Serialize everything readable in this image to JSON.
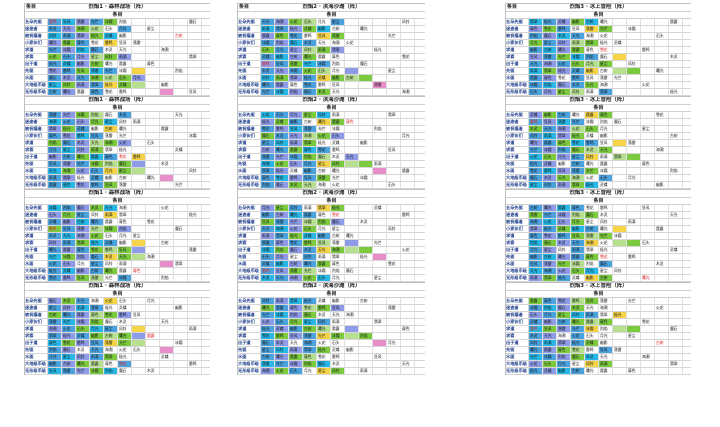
{
  "corner_label": "条目",
  "tiers": [
    "五朵先驱",
    "迷途者",
    "被祝福者",
    "小家伙们",
    "求道",
    "求索",
    "出于道",
    "先驱",
    "水面",
    "大地级币级",
    "无形级币级"
  ],
  "palette": {
    "bl": "#4aa3df",
    "cy": "#27b8e8",
    "pu": "#8e9be8",
    "gr": "#7ccb3f",
    "yl": "#f5d547",
    "lg": "#b6e08f",
    "pk": "#e88ec9"
  },
  "names": [
    "雷鸣",
    "狂风",
    "落雷",
    "光芒",
    "冰霜",
    "烈焰",
    "魔石",
    "木灵",
    "天光",
    "海潮",
    "火花",
    "石头",
    "月光",
    "星尘",
    "风铃",
    "雨滴",
    "翡翠",
    "极光",
    "灵蝶",
    "幽影",
    "古树",
    "曙光",
    "晨露",
    "暮色",
    "雪花"
  ],
  "columns": [
    {
      "blocks": [
        {
          "title": "烈焰1 · 森林战场（阵）",
          "header": "条目"
        },
        {
          "title": "烈焰1 · 森林战场（阵）",
          "header": "条目"
        },
        {
          "title": "烈焰1 · 森林战场（阵）",
          "header": "条目"
        },
        {
          "title": "烈焰1 · 森林战场（阵）",
          "header": "条目"
        }
      ]
    },
    {
      "blocks": [
        {
          "title": "烈焰2 · 滨海沙滩（阵）",
          "header": "条目"
        },
        {
          "title": "烈焰2 · 滨海沙滩（阵）",
          "header": "条目"
        },
        {
          "title": "烈焰2 · 滨海沙滩（阵）",
          "header": "条目"
        },
        {
          "title": "烈焰2 · 滨海沙滩（阵）",
          "header": "条目"
        }
      ]
    },
    {
      "blocks": [
        {
          "title": "烈焰3 · 冰上冒险（阵）",
          "header": "条目"
        },
        {
          "title": "烈焰3 · 冰上冒险（阵）",
          "header": "条目"
        },
        {
          "title": "烈焰3 · 冰上冒险（阵）",
          "header": "条目"
        },
        {
          "title": "烈焰3 · 冰上冒险（阵）",
          "header": "条目"
        }
      ]
    }
  ]
}
